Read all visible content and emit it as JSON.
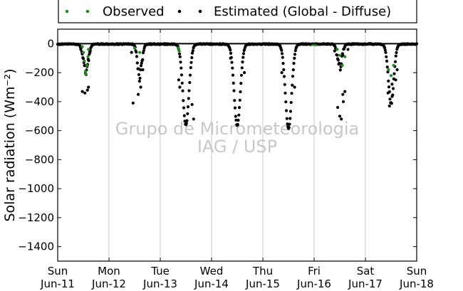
{
  "chart_data": {
    "type": "scatter",
    "ylabel": "Solar radiation (Wm⁻²)",
    "ylim": [
      -1500,
      100
    ],
    "yticks": [
      0,
      -200,
      -400,
      -600,
      -800,
      -1000,
      -1200,
      -1400
    ],
    "xlim": [
      0,
      7
    ],
    "xticks": [
      {
        "x": 0,
        "day": "Sun",
        "date": "Jun-11"
      },
      {
        "x": 1,
        "day": "Mon",
        "date": "Jun-12"
      },
      {
        "x": 2,
        "day": "Tue",
        "date": "Jun-13"
      },
      {
        "x": 3,
        "day": "Wed",
        "date": "Jun-14"
      },
      {
        "x": 4,
        "day": "Thu",
        "date": "Jun-15"
      },
      {
        "x": 5,
        "day": "Fri",
        "date": "Jun-16"
      },
      {
        "x": 6,
        "day": "Sat",
        "date": "Jun-17"
      },
      {
        "x": 7,
        "day": "Sun",
        "date": "Jun-18"
      }
    ],
    "grid": "vertical",
    "legend_position": "top",
    "watermark": [
      "Grupo de Micrometeorologia",
      "IAG / USP"
    ],
    "series": [
      {
        "name": "Observed",
        "color": "#228b22",
        "points": [
          [
            0.48,
            -20
          ],
          [
            0.5,
            -60
          ],
          [
            0.52,
            -120
          ],
          [
            0.54,
            -190
          ],
          [
            0.55,
            -210
          ],
          [
            0.57,
            -150
          ],
          [
            0.59,
            -90
          ],
          [
            0.6,
            -40
          ],
          [
            1.5,
            -30
          ],
          [
            1.6,
            -60
          ],
          [
            2.35,
            -30
          ],
          [
            2.37,
            -50
          ],
          [
            4.97,
            -5
          ],
          [
            5.0,
            -2
          ],
          [
            5.03,
            -8
          ],
          [
            5.45,
            -40
          ],
          [
            5.5,
            -80
          ],
          [
            5.55,
            -150
          ],
          [
            5.6,
            -90
          ],
          [
            6.45,
            -180
          ],
          [
            6.5,
            -220
          ],
          [
            6.55,
            -150
          ]
        ]
      },
      {
        "name": "Estimated (Global - Diffuse)",
        "color": "#000000",
        "days": [
          {
            "center": 0.55,
            "depth": 180,
            "width": 0.07,
            "scatter": 80,
            "outliers": [
              [
                0.48,
                -330
              ],
              [
                0.53,
                -340
              ],
              [
                0.58,
                -320
              ],
              [
                0.6,
                -300
              ],
              [
                0.45,
                -40
              ],
              [
                0.63,
                -60
              ]
            ]
          },
          {
            "center": 1.6,
            "depth": 210,
            "width": 0.06,
            "scatter": 90,
            "outliers": [
              [
                1.5,
                -30
              ],
              [
                1.47,
                -410
              ],
              [
                1.57,
                -350
              ],
              [
                1.62,
                -300
              ],
              [
                1.66,
                -180
              ],
              [
                1.44,
                -60
              ]
            ]
          },
          {
            "center": 2.5,
            "depth": 555,
            "width": 0.085,
            "scatter": 18,
            "outliers": [
              [
                2.36,
                -250
              ],
              [
                2.38,
                -300
              ],
              [
                2.62,
                -420
              ],
              [
                2.65,
                -520
              ]
            ]
          },
          {
            "center": 3.5,
            "depth": 560,
            "width": 0.085,
            "scatter": 15,
            "outliers": [
              [
                3.37,
                -100
              ],
              [
                3.64,
                -200
              ]
            ]
          },
          {
            "center": 4.5,
            "depth": 585,
            "width": 0.085,
            "scatter": 12,
            "outliers": [
              [
                4.37,
                -200
              ],
              [
                4.62,
                -300
              ]
            ]
          },
          {
            "center": 5.5,
            "depth": 170,
            "width": 0.06,
            "scatter": 100,
            "outliers": [
              [
                5.46,
                -440
              ],
              [
                5.5,
                -500
              ],
              [
                5.53,
                -520
              ],
              [
                5.56,
                -350
              ],
              [
                5.6,
                -330
              ],
              [
                5.57,
                -400
              ],
              [
                5.4,
                -50
              ],
              [
                5.66,
                -40
              ]
            ]
          },
          {
            "center": 6.5,
            "depth": 400,
            "width": 0.075,
            "scatter": 30,
            "outliers": [
              [
                6.44,
                -340
              ],
              [
                6.47,
                -430
              ],
              [
                6.52,
                -280
              ],
              [
                6.59,
                -250
              ],
              [
                6.62,
                -180
              ]
            ]
          }
        ]
      }
    ]
  }
}
